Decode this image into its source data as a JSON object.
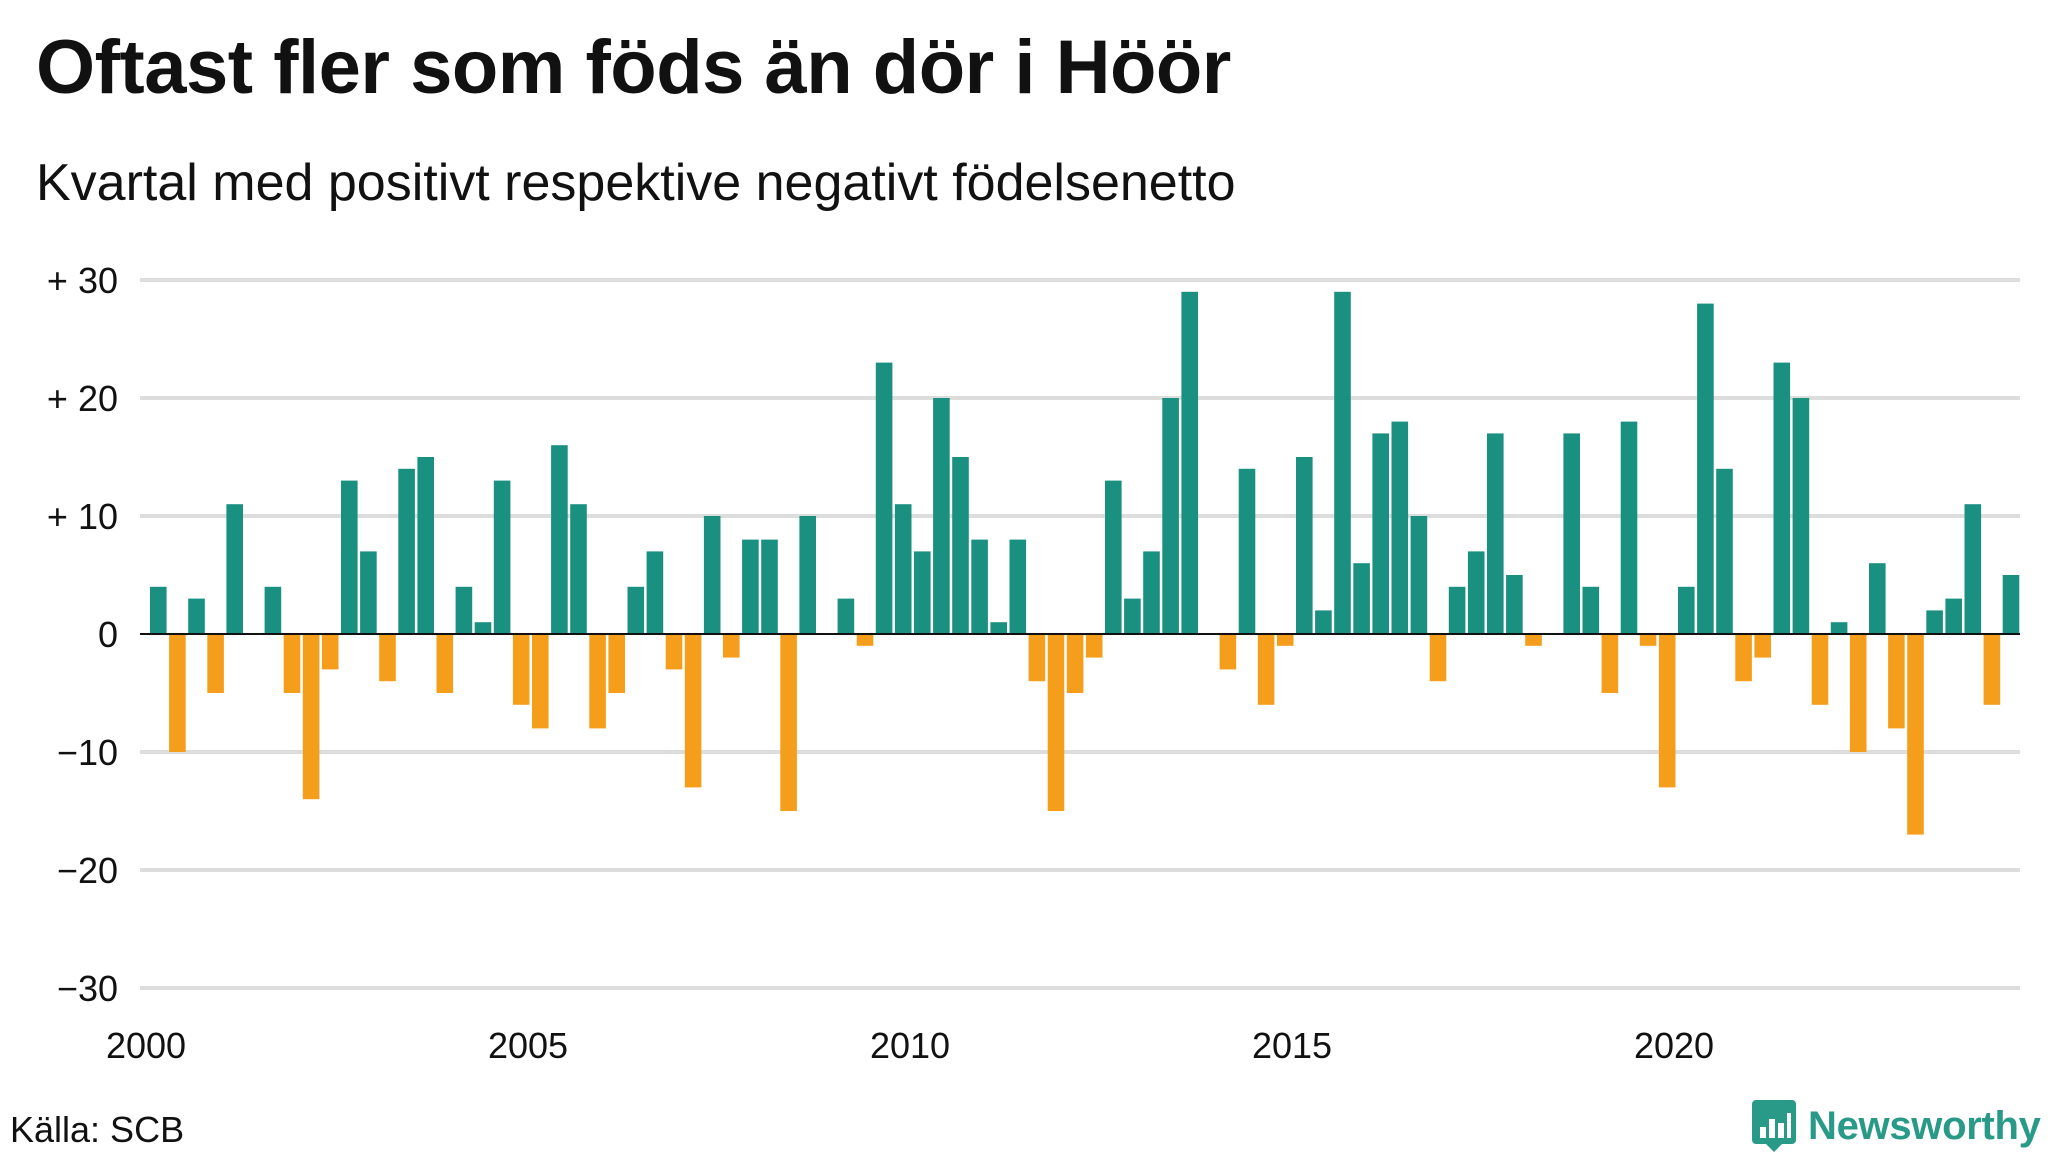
{
  "chart_data": {
    "type": "bar",
    "title": "Oftast fler som föds än dör i Höör",
    "subtitle": "Kvartal med positivt respektive negativt födelsenetto",
    "start_year": 2000,
    "start_quarter": 1,
    "values": [
      4,
      -10,
      3,
      -5,
      11,
      0,
      4,
      -5,
      -14,
      -3,
      13,
      7,
      -4,
      14,
      15,
      -5,
      4,
      1,
      13,
      -6,
      -8,
      16,
      11,
      -8,
      -5,
      4,
      7,
      -3,
      -13,
      10,
      -2,
      8,
      8,
      -15,
      10,
      0,
      3,
      -1,
      23,
      11,
      7,
      20,
      15,
      8,
      1,
      8,
      -4,
      -15,
      -5,
      -2,
      13,
      3,
      7,
      20,
      29,
      0,
      -3,
      14,
      -6,
      -1,
      15,
      2,
      29,
      6,
      17,
      18,
      10,
      -4,
      4,
      7,
      17,
      5,
      -1,
      0,
      17,
      4,
      -5,
      18,
      -1,
      -13,
      4,
      28,
      14,
      -4,
      -2,
      23,
      20,
      -6,
      1,
      -10,
      6,
      -8,
      -17,
      2,
      3,
      11,
      -6,
      5
    ],
    "ylim": [
      -30,
      30
    ],
    "y_ticks": [
      30,
      20,
      10,
      0,
      -10,
      -20,
      -30
    ],
    "y_tick_labels": [
      "+ 30",
      "+ 20",
      "+ 10",
      "0",
      "−10",
      "−20",
      "−30"
    ],
    "x_ticks": [
      "2000",
      "2005",
      "2010",
      "2015",
      "2020"
    ],
    "colors": {
      "positive": "#1a9080",
      "negative": "#f59e1b",
      "grid": "#dddddd",
      "zero_line": "#111111"
    },
    "grid": true
  },
  "footer": {
    "source": "Källa: SCB",
    "brand": "Newsworthy"
  }
}
